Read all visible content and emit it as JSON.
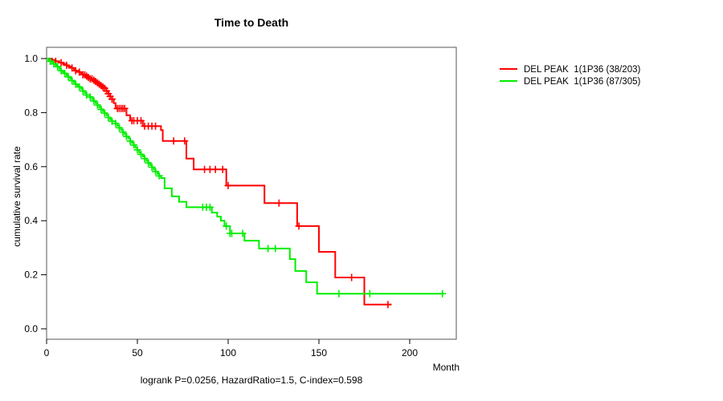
{
  "title": "Time to Death",
  "caption": "logrank P=0.0256, HazardRatio=1.5, C-index=0.598",
  "x_axis_unit": "Month",
  "y_axis_label": "cumulative survival rate",
  "chart_data": {
    "type": "line",
    "subtype": "kaplan-meier-step-survival",
    "title": "Time to Death",
    "xlabel": "Month",
    "ylabel": "cumulative survival rate",
    "annotation": "logrank P=0.0256, HazardRatio=1.5, C-index=0.598",
    "xlim": [
      0,
      226
    ],
    "ylim": [
      0.0,
      1.0
    ],
    "grid": false,
    "legend_position": "right-outside",
    "x_ticks": [
      "0",
      "50",
      "100",
      "150",
      "200"
    ],
    "x_tick_values": [
      0,
      50,
      100,
      150,
      200
    ],
    "y_ticks": [
      "0.0",
      "0.2",
      "0.4",
      "0.6",
      "0.8",
      "1.0"
    ],
    "y_tick_values": [
      0,
      0.2,
      0.4,
      0.6,
      0.8,
      1.0
    ],
    "series": [
      {
        "name": "DEL PEAK  1(1P36 (38/203)",
        "events_over_n": "38/203",
        "color": "#ff0000",
        "end_month": 190,
        "steps": [
          [
            0,
            1.0
          ],
          [
            3,
            0.995
          ],
          [
            5,
            0.99
          ],
          [
            7,
            0.985
          ],
          [
            9,
            0.98
          ],
          [
            11,
            0.975
          ],
          [
            12,
            0.97
          ],
          [
            14,
            0.965
          ],
          [
            15,
            0.96
          ],
          [
            16,
            0.955
          ],
          [
            18,
            0.95
          ],
          [
            19,
            0.945
          ],
          [
            20,
            0.94
          ],
          [
            22,
            0.935
          ],
          [
            23,
            0.93
          ],
          [
            24,
            0.925
          ],
          [
            26,
            0.92
          ],
          [
            27,
            0.915
          ],
          [
            28,
            0.91
          ],
          [
            29,
            0.905
          ],
          [
            30,
            0.9
          ],
          [
            31,
            0.895
          ],
          [
            32,
            0.89
          ],
          [
            33,
            0.88
          ],
          [
            34,
            0.87
          ],
          [
            35,
            0.86
          ],
          [
            36,
            0.85
          ],
          [
            37,
            0.835
          ],
          [
            38,
            0.815
          ],
          [
            44,
            0.79
          ],
          [
            46,
            0.77
          ],
          [
            53,
            0.75
          ],
          [
            63,
            0.735
          ],
          [
            64,
            0.695
          ],
          [
            77,
            0.63
          ],
          [
            81,
            0.59
          ],
          [
            99,
            0.53
          ],
          [
            120,
            0.465
          ],
          [
            138,
            0.38
          ],
          [
            150,
            0.285
          ],
          [
            159,
            0.19
          ],
          [
            175,
            0.09
          ]
        ],
        "censor_months": [
          5,
          8,
          11,
          14,
          16,
          18,
          20,
          21,
          22,
          23,
          24,
          25,
          26,
          27,
          28,
          29,
          30,
          31,
          32,
          33,
          34,
          35,
          36,
          39,
          40,
          41,
          42,
          43,
          47,
          48,
          50,
          52,
          54,
          56,
          58,
          60,
          70,
          76,
          87,
          90,
          93,
          97,
          100,
          128,
          139,
          168,
          188
        ]
      },
      {
        "name": "DEL PEAK  1(1P36 (87/305)",
        "events_over_n": "87/305",
        "color": "#00ee00",
        "end_month": 218,
        "steps": [
          [
            0,
            1.0
          ],
          [
            1,
            0.995
          ],
          [
            2,
            0.99
          ],
          [
            3,
            0.985
          ],
          [
            4,
            0.98
          ],
          [
            5,
            0.975
          ],
          [
            6,
            0.97
          ],
          [
            7,
            0.962
          ],
          [
            8,
            0.955
          ],
          [
            9,
            0.95
          ],
          [
            10,
            0.945
          ],
          [
            11,
            0.938
          ],
          [
            12,
            0.932
          ],
          [
            13,
            0.925
          ],
          [
            14,
            0.918
          ],
          [
            15,
            0.912
          ],
          [
            16,
            0.905
          ],
          [
            17,
            0.9
          ],
          [
            18,
            0.895
          ],
          [
            19,
            0.888
          ],
          [
            20,
            0.88
          ],
          [
            21,
            0.872
          ],
          [
            22,
            0.865
          ],
          [
            24,
            0.858
          ],
          [
            25,
            0.85
          ],
          [
            26,
            0.843
          ],
          [
            27,
            0.835
          ],
          [
            28,
            0.828
          ],
          [
            29,
            0.82
          ],
          [
            30,
            0.812
          ],
          [
            31,
            0.805
          ],
          [
            32,
            0.798
          ],
          [
            33,
            0.79
          ],
          [
            34,
            0.782
          ],
          [
            35,
            0.775
          ],
          [
            36,
            0.768
          ],
          [
            38,
            0.76
          ],
          [
            39,
            0.752
          ],
          [
            40,
            0.744
          ],
          [
            41,
            0.736
          ],
          [
            42,
            0.728
          ],
          [
            43,
            0.72
          ],
          [
            44,
            0.712
          ],
          [
            45,
            0.705
          ],
          [
            46,
            0.695
          ],
          [
            47,
            0.688
          ],
          [
            48,
            0.68
          ],
          [
            49,
            0.67
          ],
          [
            50,
            0.662
          ],
          [
            51,
            0.652
          ],
          [
            52,
            0.645
          ],
          [
            53,
            0.638
          ],
          [
            54,
            0.63
          ],
          [
            55,
            0.622
          ],
          [
            56,
            0.614
          ],
          [
            57,
            0.606
          ],
          [
            58,
            0.598
          ],
          [
            59,
            0.59
          ],
          [
            60,
            0.582
          ],
          [
            61,
            0.574
          ],
          [
            62,
            0.566
          ],
          [
            63,
            0.558
          ],
          [
            65,
            0.52
          ],
          [
            69,
            0.49
          ],
          [
            73,
            0.47
          ],
          [
            77,
            0.45
          ],
          [
            91,
            0.43
          ],
          [
            94,
            0.415
          ],
          [
            96,
            0.4
          ],
          [
            98,
            0.38
          ],
          [
            101,
            0.353
          ],
          [
            109,
            0.326
          ],
          [
            117,
            0.297
          ],
          [
            134,
            0.258
          ],
          [
            137,
            0.214
          ],
          [
            143,
            0.172
          ],
          [
            149,
            0.13
          ]
        ],
        "censor_months": [
          2,
          4,
          6,
          8,
          10,
          12,
          14,
          16,
          18,
          20,
          22,
          24,
          26,
          28,
          30,
          32,
          34,
          36,
          38,
          40,
          42,
          44,
          46,
          48,
          50,
          52,
          54,
          56,
          58,
          60,
          62,
          86,
          88,
          90,
          99,
          101,
          102,
          108,
          122,
          126,
          161,
          178,
          218
        ]
      }
    ]
  }
}
